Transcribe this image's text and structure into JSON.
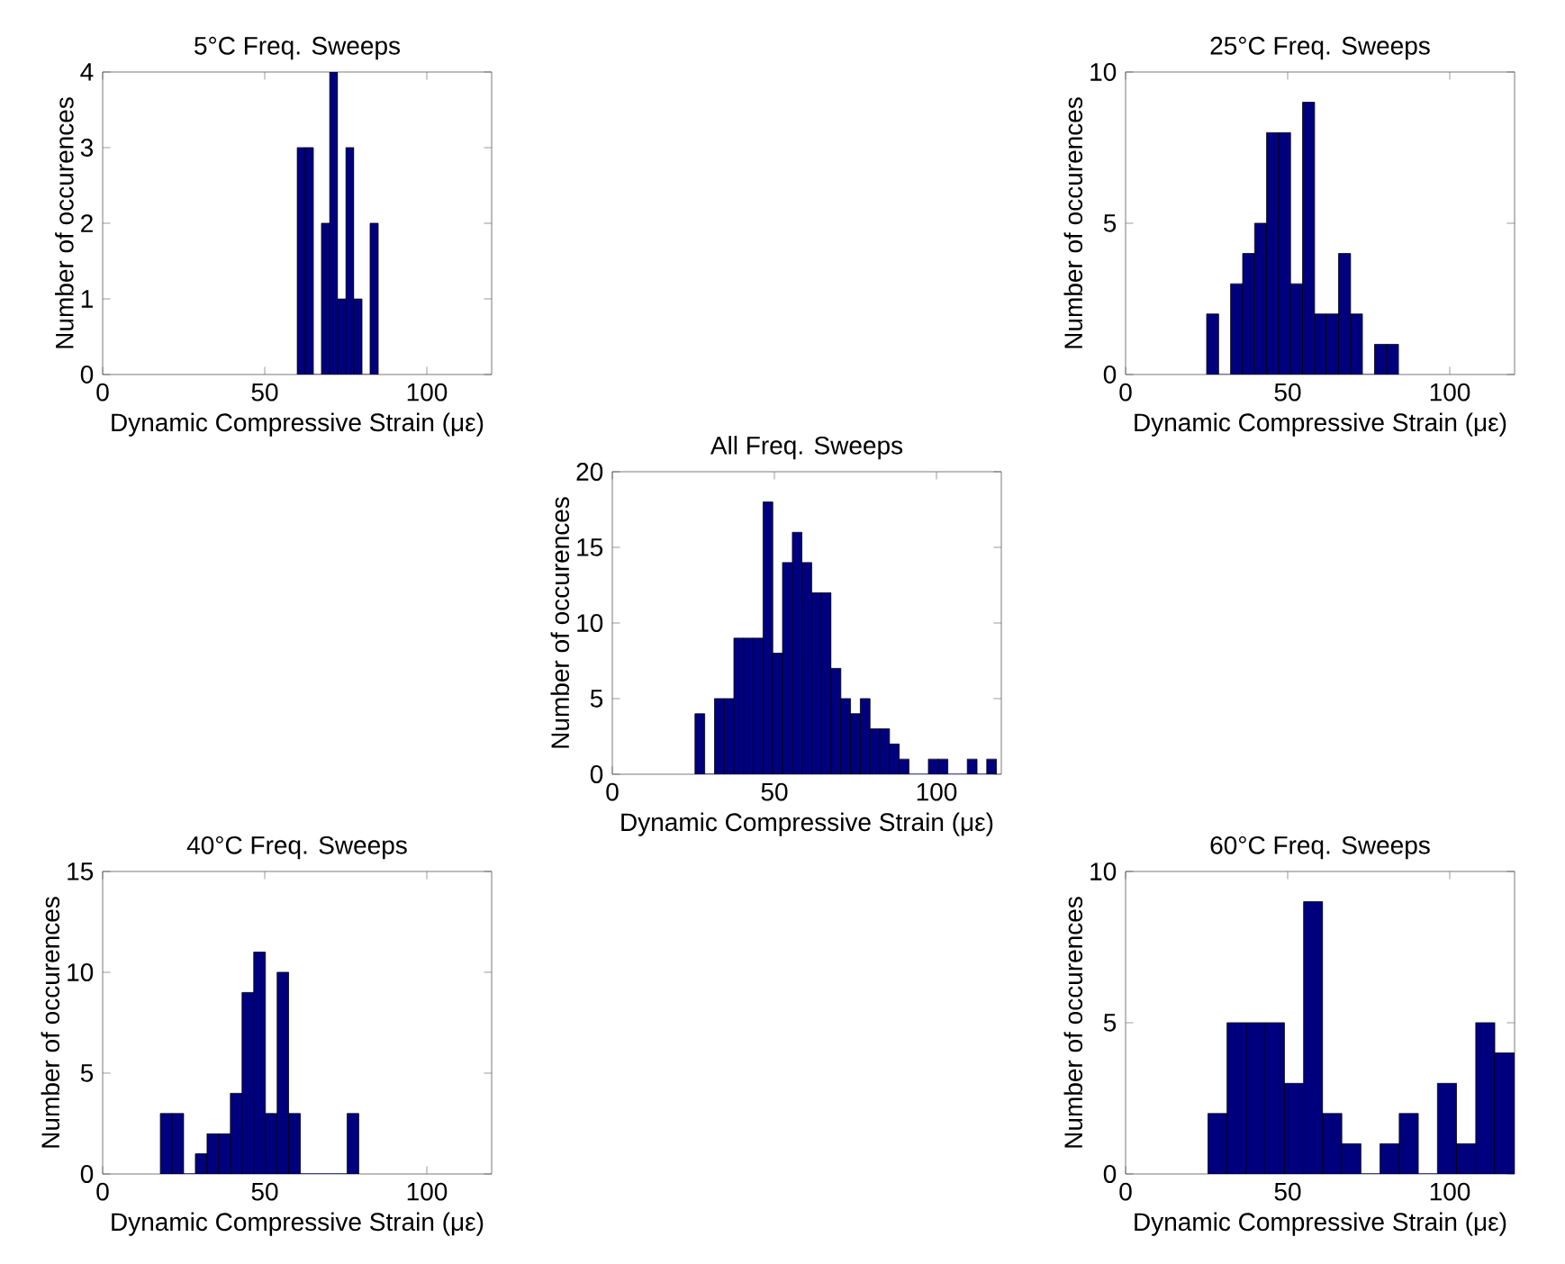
{
  "chart_data": [
    {
      "type": "histogram",
      "title": "5°C Freq. Sweeps",
      "xlabel": "Dynamic Compressive Strain (με)",
      "ylabel": "Number of occurences",
      "color": "#00007f",
      "bins": [
        60,
        62.5,
        65,
        67.5,
        70,
        72.5,
        75,
        77.5,
        80,
        82.5,
        85
      ],
      "values": [
        3,
        3,
        0,
        2,
        4,
        1,
        3,
        1,
        0,
        2
      ],
      "xlim": [
        0,
        120
      ],
      "xticks": [
        0,
        50,
        100
      ],
      "ylim": [
        0,
        4
      ],
      "yticks": [
        0,
        1,
        2,
        3,
        4
      ]
    },
    {
      "type": "histogram",
      "title": "25°C Freq. Sweeps",
      "xlabel": "Dynamic Compressive Strain (με)",
      "ylabel": "Number of occurences",
      "color": "#00007f",
      "bins": [
        25,
        28.7,
        32.4,
        36.1,
        39.8,
        43.5,
        47.2,
        50.9,
        54.6,
        58.3,
        62,
        65.7,
        69.4,
        73.1,
        76.8,
        80.5,
        84.2
      ],
      "values": [
        2,
        0,
        3,
        4,
        5,
        8,
        8,
        3,
        9,
        2,
        2,
        4,
        2,
        0,
        1,
        1
      ],
      "xlim": [
        0,
        120
      ],
      "xticks": [
        0,
        50,
        100
      ],
      "ylim": [
        0,
        10
      ],
      "yticks": [
        0,
        5,
        10
      ]
    },
    {
      "type": "histogram",
      "title": "All Freq. Sweeps",
      "xlabel": "Dynamic Compressive Strain (με)",
      "ylabel": "Number of occurences",
      "color": "#00007f",
      "bins": [
        25.5,
        28.5,
        31.5,
        34.5,
        37.5,
        40.5,
        43.5,
        46.5,
        49.5,
        52.5,
        55.5,
        58.5,
        61.5,
        64.5,
        67.5,
        70.5,
        73.5,
        76.5,
        79.5,
        82.5,
        85.5,
        88.5,
        91.5,
        94.5,
        97.5,
        100.5,
        103.5,
        106.5,
        109.5,
        112.5,
        115.5,
        118.5
      ],
      "values": [
        4,
        0,
        5,
        5,
        9,
        9,
        9,
        18,
        8,
        14,
        16,
        14,
        12,
        12,
        7,
        5,
        4,
        5,
        3,
        3,
        2,
        1,
        0,
        0,
        1,
        1,
        0,
        0,
        1,
        0,
        1
      ],
      "xlim": [
        0,
        120
      ],
      "xticks": [
        0,
        50,
        100
      ],
      "ylim": [
        0,
        20
      ],
      "yticks": [
        0,
        5,
        10,
        15,
        20
      ]
    },
    {
      "type": "histogram",
      "title": "40°C Freq. Sweeps",
      "xlabel": "Dynamic Compressive Strain (με)",
      "ylabel": "Number of occurences",
      "color": "#00007f",
      "bins": [
        17.8,
        21.4,
        25,
        28.6,
        32.2,
        35.8,
        39.4,
        43,
        46.6,
        50.2,
        53.8,
        57.4,
        61,
        64.6,
        68.2,
        71.8,
        75.4,
        79
      ],
      "values": [
        3,
        3,
        0,
        1,
        2,
        2,
        4,
        9,
        11,
        3,
        10,
        3,
        0,
        0,
        0,
        0,
        3
      ],
      "xlim": [
        0,
        120
      ],
      "xticks": [
        0,
        50,
        100
      ],
      "ylim": [
        0,
        15
      ],
      "yticks": [
        0,
        5,
        10,
        15
      ]
    },
    {
      "type": "histogram",
      "title": "60°C Freq. Sweeps",
      "xlabel": "Dynamic Compressive Strain (με)",
      "ylabel": "Number of occurences",
      "color": "#00007f",
      "bins": [
        25.4,
        31.3,
        37.2,
        43.1,
        49,
        54.9,
        60.8,
        66.7,
        72.6,
        78.5,
        84.4,
        90.3,
        96.2,
        102.1,
        108,
        113.9,
        120
      ],
      "values": [
        2,
        5,
        5,
        5,
        3,
        9,
        2,
        1,
        0,
        1,
        2,
        0,
        3,
        1,
        5,
        4
      ],
      "xlim": [
        0,
        120
      ],
      "xticks": [
        0,
        50,
        100
      ],
      "ylim": [
        0,
        10
      ],
      "yticks": [
        0,
        5,
        10
      ]
    }
  ]
}
